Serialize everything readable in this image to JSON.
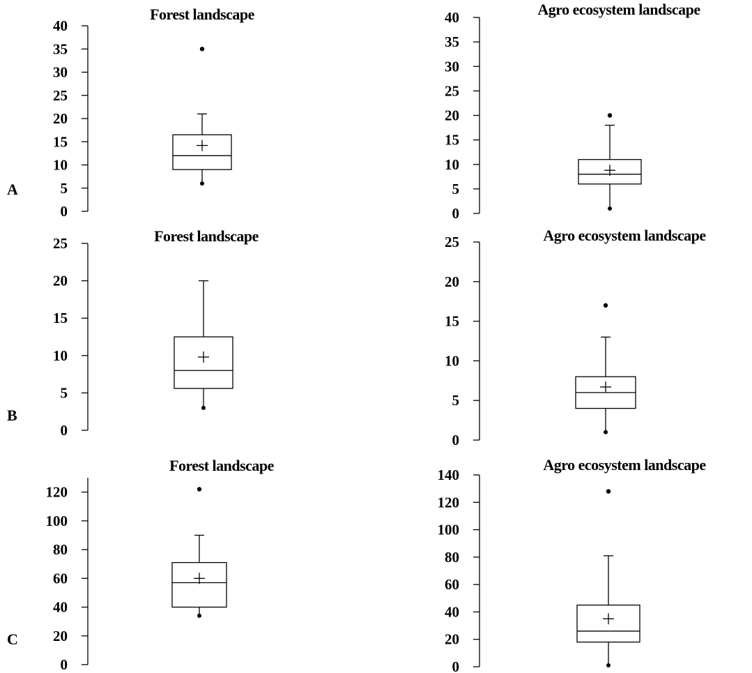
{
  "row_labels": [
    "A",
    "B",
    "C"
  ],
  "chart_data": [
    {
      "type": "box",
      "title": "Forest landscape",
      "row": "A",
      "ylim": [
        0,
        40
      ],
      "ticks": [
        0,
        5,
        10,
        15,
        20,
        25,
        30,
        35,
        40
      ],
      "box": {
        "whisker_low": 6,
        "q1": 9,
        "median": 12,
        "q3": 16.5,
        "whisker_high": 21,
        "mean": 14.2,
        "outliers": [
          35
        ]
      }
    },
    {
      "type": "box",
      "title": "Agro ecosystem landscape",
      "row": "A",
      "ylim": [
        0,
        40
      ],
      "ticks": [
        0,
        5,
        10,
        15,
        20,
        25,
        30,
        35,
        40
      ],
      "box": {
        "whisker_low": 1,
        "q1": 6,
        "median": 8,
        "q3": 11,
        "whisker_high": 18,
        "mean": 8.8,
        "outliers": [
          20
        ]
      }
    },
    {
      "type": "box",
      "title": "Forest landscape",
      "row": "B",
      "ylim": [
        0,
        25
      ],
      "ticks": [
        0,
        5,
        10,
        15,
        20,
        25
      ],
      "box": {
        "whisker_low": 3,
        "q1": 5.6,
        "median": 8,
        "q3": 12.5,
        "whisker_high": 20,
        "mean": 9.8,
        "outliers": []
      }
    },
    {
      "type": "box",
      "title": "Agro ecosystem landscape",
      "row": "B",
      "ylim": [
        0,
        25
      ],
      "ticks": [
        0,
        5,
        10,
        15,
        20,
        25
      ],
      "box": {
        "whisker_low": 1,
        "q1": 4,
        "median": 6,
        "q3": 8,
        "whisker_high": 13,
        "mean": 6.7,
        "outliers": [
          17
        ]
      }
    },
    {
      "type": "box",
      "title": "Forest landscape",
      "row": "C",
      "ylim": [
        0,
        130
      ],
      "ticks": [
        0,
        20,
        40,
        60,
        80,
        100,
        120
      ],
      "box": {
        "whisker_low": 34,
        "q1": 40,
        "median": 57,
        "q3": 71,
        "whisker_high": 90,
        "mean": 60,
        "outliers": [
          122
        ]
      }
    },
    {
      "type": "box",
      "title": "Agro ecosystem landscape",
      "row": "C",
      "ylim": [
        0,
        140
      ],
      "ticks": [
        0,
        20,
        40,
        60,
        80,
        100,
        120,
        140
      ],
      "box": {
        "whisker_low": 1,
        "q1": 18,
        "median": 26,
        "q3": 45,
        "whisker_high": 81,
        "mean": 35,
        "outliers": [
          128
        ]
      }
    }
  ]
}
